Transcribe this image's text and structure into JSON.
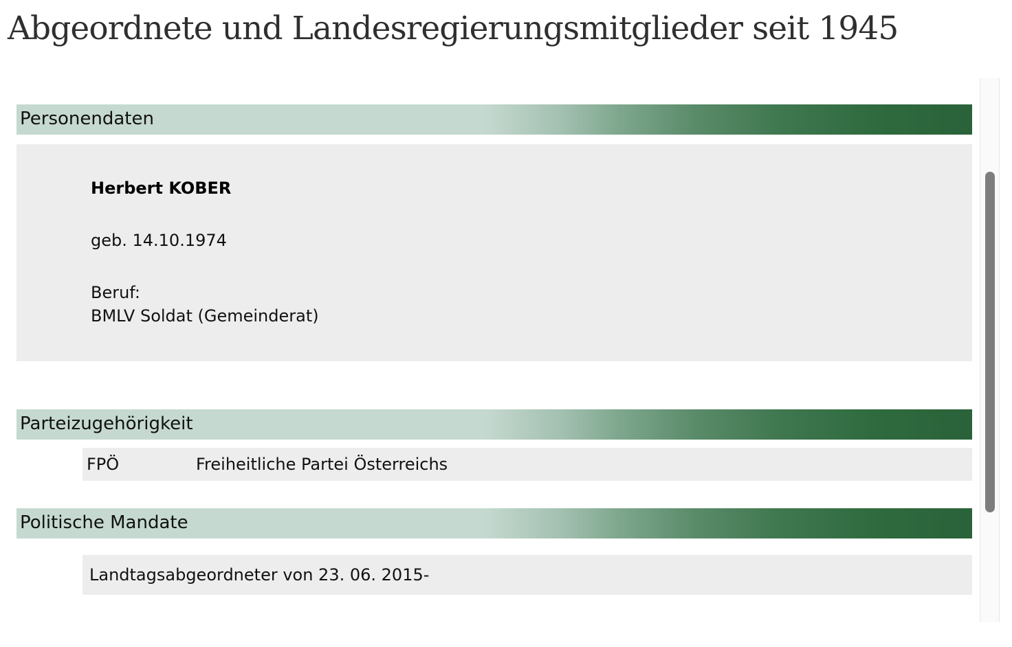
{
  "page": {
    "title": "Abgeordnete und Landesregierungsmitglieder seit 1945"
  },
  "colors": {
    "header_gradient_start": "#c5d9d0",
    "header_gradient_end": "#2a6239",
    "panel_background": "#ededed"
  },
  "sections": {
    "personal": {
      "heading": "Personendaten",
      "name": "Herbert KOBER",
      "birth": "geb. 14.10.1974",
      "profession_label": "Beruf:",
      "profession_value": "BMLV Soldat (Gemeinderat)"
    },
    "party": {
      "heading": "Parteizugehörigkeit",
      "abbreviation": "FPÖ",
      "full_name": "Freiheitliche Partei Österreichs"
    },
    "mandates": {
      "heading": "Politische Mandate",
      "items": [
        "Landtagsabgeordneter von 23. 06. 2015-"
      ]
    }
  }
}
